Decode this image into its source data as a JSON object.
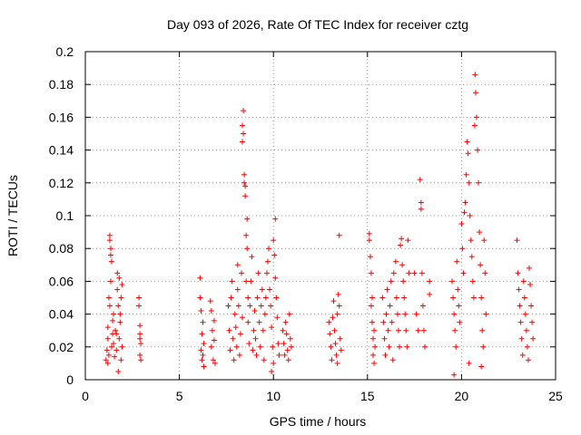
{
  "chart_data": {
    "type": "scatter",
    "title": "Day 093 of 2026, Rate Of TEC Index for receiver cztg",
    "xlabel": "GPS time / hours",
    "ylabel": "ROTI / TECUs",
    "xlim": [
      0,
      25
    ],
    "ylim": [
      0,
      0.2
    ],
    "x_ticks": [
      0,
      5,
      10,
      15,
      20,
      25
    ],
    "x_tick_labels": [
      "0",
      "5",
      "10",
      "15",
      "20",
      "25"
    ],
    "y_ticks": [
      0,
      0.02,
      0.04,
      0.06,
      0.08,
      0.1,
      0.12,
      0.14,
      0.16,
      0.18,
      0.2
    ],
    "y_tick_labels": [
      "0",
      "0.02",
      "0.04",
      "0.06",
      "0.08",
      "0.1",
      "0.12",
      "0.14",
      "0.16",
      "0.18",
      "0.2"
    ],
    "grid": true,
    "marker": "+",
    "marker_color": "#ff0000",
    "series": [
      {
        "name": "ROTI",
        "points": [
          [
            1.1,
            0.012
          ],
          [
            1.15,
            0.018
          ],
          [
            1.2,
            0.025
          ],
          [
            1.2,
            0.032
          ],
          [
            1.25,
            0.015
          ],
          [
            1.25,
            0.05
          ],
          [
            1.3,
            0.088
          ],
          [
            1.3,
            0.085
          ],
          [
            1.35,
            0.08
          ],
          [
            1.35,
            0.076
          ],
          [
            1.4,
            0.072
          ],
          [
            1.4,
            0.02
          ],
          [
            1.45,
            0.028
          ],
          [
            1.45,
            0.036
          ],
          [
            1.3,
            0.045
          ],
          [
            1.35,
            0.06
          ],
          [
            1.2,
            0.01
          ],
          [
            1.5,
            0.022
          ],
          [
            1.5,
            0.04
          ],
          [
            1.55,
            0.014
          ],
          [
            1.6,
            0.03
          ],
          [
            1.65,
            0.018
          ],
          [
            1.7,
            0.065
          ],
          [
            1.7,
            0.055
          ],
          [
            1.75,
            0.045
          ],
          [
            1.8,
            0.062
          ],
          [
            1.8,
            0.025
          ],
          [
            1.85,
            0.035
          ],
          [
            1.9,
            0.012
          ],
          [
            1.9,
            0.05
          ],
          [
            1.95,
            0.02
          ],
          [
            1.95,
            0.058
          ],
          [
            1.75,
            0.005
          ],
          [
            1.85,
            0.04
          ],
          [
            1.65,
            0.028
          ],
          [
            2.85,
            0.05
          ],
          [
            2.85,
            0.045
          ],
          [
            2.9,
            0.033
          ],
          [
            2.9,
            0.025
          ],
          [
            2.9,
            0.015
          ],
          [
            2.95,
            0.012
          ],
          [
            2.95,
            0.022
          ],
          [
            2.9,
            0.028
          ],
          [
            6.1,
            0.062
          ],
          [
            6.1,
            0.05
          ],
          [
            6.15,
            0.042
          ],
          [
            6.15,
            0.018
          ],
          [
            6.2,
            0.012
          ],
          [
            6.2,
            0.028
          ],
          [
            6.25,
            0.035
          ],
          [
            6.3,
            0.022
          ],
          [
            6.3,
            0.008
          ],
          [
            6.25,
            0.015
          ],
          [
            6.65,
            0.048
          ],
          [
            6.7,
            0.042
          ],
          [
            6.7,
            0.02
          ],
          [
            6.75,
            0.03
          ],
          [
            6.8,
            0.012
          ],
          [
            6.85,
            0.024
          ],
          [
            6.85,
            0.036
          ],
          [
            6.9,
            0.01
          ],
          [
            7.6,
            0.045
          ],
          [
            7.65,
            0.03
          ],
          [
            7.7,
            0.018
          ],
          [
            7.75,
            0.05
          ],
          [
            7.8,
            0.06
          ],
          [
            7.85,
            0.025
          ],
          [
            7.9,
            0.012
          ],
          [
            7.95,
            0.04
          ],
          [
            8.0,
            0.032
          ],
          [
            8.05,
            0.02
          ],
          [
            8.1,
            0.055
          ],
          [
            8.1,
            0.07
          ],
          [
            8.15,
            0.045
          ],
          [
            8.2,
            0.015
          ],
          [
            8.25,
            0.028
          ],
          [
            8.3,
            0.065
          ],
          [
            8.35,
            0.038
          ],
          [
            8.35,
            0.155
          ],
          [
            8.35,
            0.145
          ],
          [
            8.4,
            0.164
          ],
          [
            8.4,
            0.15
          ],
          [
            8.45,
            0.125
          ],
          [
            8.45,
            0.12
          ],
          [
            8.5,
            0.118
          ],
          [
            8.5,
            0.112
          ],
          [
            8.55,
            0.088
          ],
          [
            8.55,
            0.06
          ],
          [
            8.6,
            0.098
          ],
          [
            8.6,
            0.08
          ],
          [
            8.65,
            0.05
          ],
          [
            8.65,
            0.035
          ],
          [
            8.7,
            0.022
          ],
          [
            8.75,
            0.045
          ],
          [
            8.8,
            0.06
          ],
          [
            8.85,
            0.075
          ],
          [
            8.9,
            0.018
          ],
          [
            8.95,
            0.03
          ],
          [
            9.0,
            0.042
          ],
          [
            9.05,
            0.025
          ],
          [
            9.1,
            0.015
          ],
          [
            9.15,
            0.05
          ],
          [
            9.2,
            0.065
          ],
          [
            9.25,
            0.035
          ],
          [
            9.3,
            0.02
          ],
          [
            9.35,
            0.045
          ],
          [
            9.4,
            0.055
          ],
          [
            9.45,
            0.03
          ],
          [
            9.5,
            0.012
          ],
          [
            9.55,
            0.04
          ],
          [
            9.6,
            0.05
          ],
          [
            9.65,
            0.065
          ],
          [
            9.7,
            0.072
          ],
          [
            9.75,
            0.08
          ],
          [
            9.8,
            0.055
          ],
          [
            9.85,
            0.045
          ],
          [
            9.9,
            0.032
          ],
          [
            9.95,
            0.02
          ],
          [
            10.0,
            0.085
          ],
          [
            10.05,
            0.076
          ],
          [
            10.1,
            0.098
          ],
          [
            10.1,
            0.062
          ],
          [
            10.15,
            0.05
          ],
          [
            10.2,
            0.038
          ],
          [
            10.25,
            0.022
          ],
          [
            10.3,
            0.015
          ],
          [
            9.9,
            0.005
          ],
          [
            10.0,
            0.01
          ],
          [
            10.5,
            0.03
          ],
          [
            10.55,
            0.022
          ],
          [
            10.6,
            0.015
          ],
          [
            10.65,
            0.035
          ],
          [
            10.7,
            0.028
          ],
          [
            10.75,
            0.018
          ],
          [
            10.8,
            0.012
          ],
          [
            10.85,
            0.04
          ],
          [
            10.9,
            0.025
          ],
          [
            10.95,
            0.02
          ],
          [
            12.95,
            0.035
          ],
          [
            13.0,
            0.028
          ],
          [
            13.05,
            0.02
          ],
          [
            13.1,
            0.012
          ],
          [
            13.15,
            0.038
          ],
          [
            13.2,
            0.048
          ],
          [
            13.25,
            0.03
          ],
          [
            13.3,
            0.022
          ],
          [
            13.35,
            0.015
          ],
          [
            13.4,
            0.04
          ],
          [
            13.45,
            0.052
          ],
          [
            13.5,
            0.045
          ],
          [
            13.55,
            0.025
          ],
          [
            13.6,
            0.018
          ],
          [
            13.5,
            0.088
          ],
          [
            13.4,
            0.01
          ],
          [
            15.1,
            0.089
          ],
          [
            15.1,
            0.085
          ],
          [
            15.15,
            0.075
          ],
          [
            15.2,
            0.065
          ],
          [
            15.2,
            0.045
          ],
          [
            15.25,
            0.035
          ],
          [
            15.3,
            0.025
          ],
          [
            15.3,
            0.015
          ],
          [
            15.35,
            0.03
          ],
          [
            15.4,
            0.02
          ],
          [
            15.35,
            0.01
          ],
          [
            15.25,
            0.05
          ],
          [
            15.8,
            0.05
          ],
          [
            15.85,
            0.035
          ],
          [
            15.9,
            0.025
          ],
          [
            15.95,
            0.015
          ],
          [
            16.0,
            0.04
          ],
          [
            16.05,
            0.055
          ],
          [
            16.1,
            0.03
          ],
          [
            16.15,
            0.02
          ],
          [
            16.2,
            0.045
          ],
          [
            16.25,
            0.06
          ],
          [
            16.3,
            0.035
          ],
          [
            16.35,
            0.012
          ],
          [
            16.4,
            0.065
          ],
          [
            16.5,
            0.072
          ],
          [
            16.55,
            0.05
          ],
          [
            16.6,
            0.04
          ],
          [
            16.65,
            0.03
          ],
          [
            16.7,
            0.02
          ],
          [
            16.75,
            0.082
          ],
          [
            16.8,
            0.086
          ],
          [
            16.85,
            0.07
          ],
          [
            16.9,
            0.06
          ],
          [
            16.95,
            0.05
          ],
          [
            17.0,
            0.04
          ],
          [
            17.05,
            0.03
          ],
          [
            17.1,
            0.02
          ],
          [
            17.15,
            0.085
          ],
          [
            17.2,
            0.065
          ],
          [
            17.5,
            0.065
          ],
          [
            17.6,
            0.04
          ],
          [
            17.7,
            0.03
          ],
          [
            17.8,
            0.122
          ],
          [
            17.85,
            0.108
          ],
          [
            17.85,
            0.104
          ],
          [
            17.9,
            0.065
          ],
          [
            17.95,
            0.045
          ],
          [
            18.0,
            0.03
          ],
          [
            18.05,
            0.02
          ],
          [
            18.3,
            0.06
          ],
          [
            18.3,
            0.052
          ],
          [
            19.5,
            0.06
          ],
          [
            19.55,
            0.05
          ],
          [
            19.6,
            0.04
          ],
          [
            19.65,
            0.03
          ],
          [
            19.7,
            0.02
          ],
          [
            19.75,
            0.072
          ],
          [
            19.8,
            0.055
          ],
          [
            19.6,
            0.003
          ],
          [
            19.85,
            0.045
          ],
          [
            19.9,
            0.035
          ],
          [
            20.0,
            0.095
          ],
          [
            20.05,
            0.08
          ],
          [
            20.1,
            0.065
          ],
          [
            20.15,
            0.102
          ],
          [
            20.2,
            0.108
          ],
          [
            20.25,
            0.125
          ],
          [
            20.3,
            0.145
          ],
          [
            20.35,
            0.138
          ],
          [
            20.4,
            0.12
          ],
          [
            20.45,
            0.1
          ],
          [
            20.5,
            0.085
          ],
          [
            20.55,
            0.075
          ],
          [
            20.6,
            0.06
          ],
          [
            20.65,
            0.05
          ],
          [
            20.7,
            0.155
          ],
          [
            20.72,
            0.186
          ],
          [
            20.75,
            0.175
          ],
          [
            20.8,
            0.16
          ],
          [
            20.85,
            0.14
          ],
          [
            20.9,
            0.12
          ],
          [
            20.95,
            0.09
          ],
          [
            21.0,
            0.07
          ],
          [
            21.05,
            0.05
          ],
          [
            21.1,
            0.03
          ],
          [
            21.15,
            0.02
          ],
          [
            21.2,
            0.085
          ],
          [
            21.25,
            0.065
          ],
          [
            21.3,
            0.04
          ],
          [
            21.05,
            0.008
          ],
          [
            20.4,
            0.01
          ],
          [
            22.95,
            0.085
          ],
          [
            23.0,
            0.065
          ],
          [
            23.05,
            0.055
          ],
          [
            23.1,
            0.045
          ],
          [
            23.15,
            0.035
          ],
          [
            23.2,
            0.025
          ],
          [
            23.25,
            0.015
          ],
          [
            23.3,
            0.06
          ],
          [
            23.35,
            0.05
          ],
          [
            23.4,
            0.04
          ],
          [
            23.45,
            0.03
          ],
          [
            23.5,
            0.02
          ],
          [
            23.55,
            0.012
          ],
          [
            23.6,
            0.068
          ],
          [
            23.65,
            0.058
          ],
          [
            23.7,
            0.045
          ],
          [
            23.75,
            0.035
          ],
          [
            23.8,
            0.025
          ]
        ]
      }
    ]
  }
}
